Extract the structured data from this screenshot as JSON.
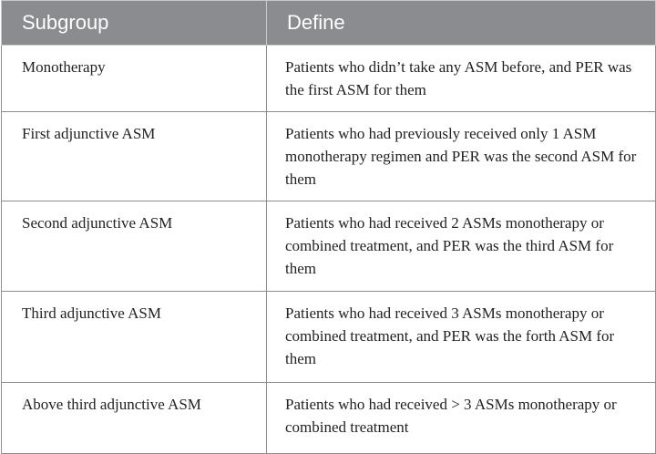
{
  "table": {
    "headers": [
      "Subgroup",
      "Define"
    ],
    "rows": [
      {
        "subgroup": "Monotherapy",
        "define": "Patients who didn’t take any ASM before, and PER was the first ASM for them"
      },
      {
        "subgroup": "First adjunctive ASM",
        "define": "Patients who had previously received only 1 ASM monotherapy regimen and PER was the second ASM for them"
      },
      {
        "subgroup": "Second adjunctive ASM",
        "define": "Patients who had received 2 ASMs monotherapy or combined treatment, and PER was the third ASM for them"
      },
      {
        "subgroup": "Third adjunctive ASM",
        "define": "Patients who had received 3 ASMs monotherapy or combined treatment, and PER was the forth ASM for them"
      },
      {
        "subgroup": "Above third adjunctive ASM",
        "define": "Patients who had received > 3 ASMs monotherapy or combined treatment"
      }
    ]
  }
}
